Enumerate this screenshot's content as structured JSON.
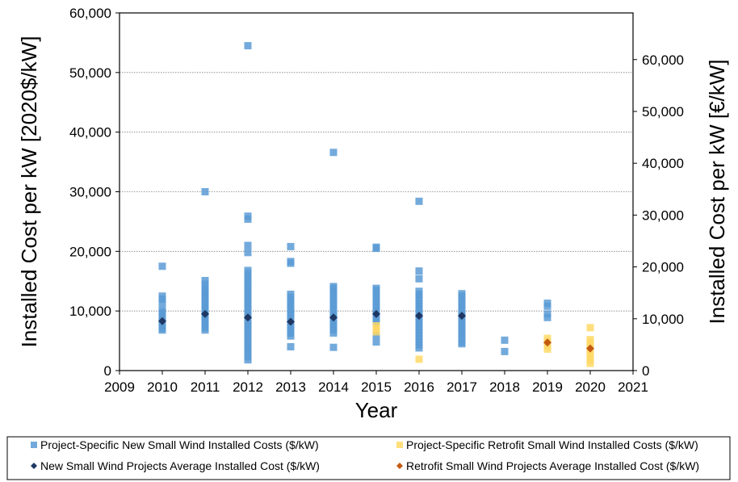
{
  "chart_data": {
    "type": "scatter",
    "xlabel": "Year",
    "ylabel_left": "Installed Cost per kW [2020$/kW]",
    "ylabel_right": "Installed Cost per kW [€/kW]",
    "x_ticks": [
      "2009",
      "2010",
      "2011",
      "2012",
      "2013",
      "2014",
      "2015",
      "2016",
      "2017",
      "2018",
      "2019",
      "2020",
      "2021"
    ],
    "xlim": [
      2009,
      2021
    ],
    "ylim_left": [
      0,
      60000
    ],
    "y_ticks_left": [
      "0",
      "10,000",
      "20,000",
      "30,000",
      "40,000",
      "50,000",
      "60,000"
    ],
    "ylim_right": [
      0,
      69000
    ],
    "y_ticks_right": [
      "0",
      "10,000",
      "20,000",
      "30,000",
      "40,000",
      "50,000",
      "60,000"
    ],
    "gridlines": true,
    "legend_position": "bottom",
    "series": [
      {
        "name": "Project-Specific New Small Wind Installed Costs ($/kW)",
        "marker": "square",
        "color": "#5b9bd5",
        "points": [
          {
            "x": 2010,
            "y": [
              6800,
              7100,
              7400,
              7700,
              8000,
              8300,
              8600,
              8900,
              9200,
              9500,
              9800,
              10100,
              11300,
              12000,
              12500,
              17500
            ]
          },
          {
            "x": 2011,
            "y": [
              6800,
              7200,
              7600,
              8000,
              8400,
              8800,
              9200,
              9600,
              10000,
              10400,
              10800,
              11200,
              11600,
              12000,
              12400,
              12800,
              13200,
              13600,
              14000,
              14500,
              15100,
              30000
            ]
          },
          {
            "x": 2012,
            "y": [
              1800,
              2300,
              2800,
              3300,
              3800,
              4300,
              4800,
              5300,
              5800,
              6300,
              6800,
              7300,
              7800,
              8300,
              8800,
              9300,
              9800,
              10300,
              10800,
              11300,
              11800,
              12300,
              12800,
              13300,
              13800,
              14300,
              14800,
              15300,
              15800,
              16300,
              16800,
              19800,
              21000,
              25400,
              25900,
              54500
            ]
          },
          {
            "x": 2013,
            "y": [
              4000,
              5800,
              6300,
              6800,
              7300,
              7800,
              8300,
              8800,
              9300,
              9800,
              10300,
              10800,
              11300,
              11800,
              12300,
              12800,
              18000,
              18300,
              20800
            ]
          },
          {
            "x": 2014,
            "y": [
              3900,
              6300,
              6800,
              7300,
              7800,
              8300,
              8800,
              9300,
              9800,
              10300,
              10800,
              11300,
              11800,
              12300,
              12800,
              13300,
              13800,
              14100,
              36600
            ]
          },
          {
            "x": 2015,
            "y": [
              4800,
              6000,
              6500,
              7000,
              7500,
              8000,
              8500,
              9000,
              9500,
              10000,
              10500,
              11000,
              11500,
              12000,
              12500,
              13000,
              13500,
              13800,
              20500,
              20700
            ]
          },
          {
            "x": 2016,
            "y": [
              3800,
              4300,
              4800,
              5300,
              5800,
              6300,
              6800,
              7300,
              7800,
              8300,
              8800,
              9300,
              9800,
              10300,
              10800,
              11300,
              11800,
              12300,
              12800,
              13300,
              15400,
              16700,
              28400
            ]
          },
          {
            "x": 2017,
            "y": [
              4500,
              4800,
              5500,
              6000,
              6500,
              7000,
              7500,
              8000,
              8500,
              9000,
              9500,
              10000,
              10500,
              11000,
              11500,
              12000,
              12500,
              12900
            ]
          },
          {
            "x": 2018,
            "y": [
              3200,
              5100
            ]
          },
          {
            "x": 2019,
            "y": [
              8900,
              9500,
              10800,
              11300
            ]
          }
        ]
      },
      {
        "name": "Project-Specific Retrofit Small Wind Installed Costs ($/kW)",
        "marker": "square",
        "color": "#ffd966",
        "points": [
          {
            "x": 2015,
            "y": [
              6500,
              7000,
              7500
            ]
          },
          {
            "x": 2016,
            "y": [
              1900
            ]
          },
          {
            "x": 2019,
            "y": [
              3600,
              4200,
              4800,
              5400
            ]
          },
          {
            "x": 2020,
            "y": [
              1200,
              1700,
              2200,
              2700,
              3200,
              3700,
              4200,
              4700,
              5200,
              7200
            ]
          }
        ]
      },
      {
        "name": "New Small Wind Projects Average Installed Cost ($/kW)",
        "marker": "diamond",
        "color": "#1f3864",
        "points": [
          {
            "x": 2010,
            "y": 8300
          },
          {
            "x": 2011,
            "y": 9500
          },
          {
            "x": 2012,
            "y": 8900
          },
          {
            "x": 2013,
            "y": 8200
          },
          {
            "x": 2014,
            "y": 8900
          },
          {
            "x": 2015,
            "y": 9500
          },
          {
            "x": 2016,
            "y": 9200
          },
          {
            "x": 2017,
            "y": 9200
          }
        ]
      },
      {
        "name": "Retrofit Small Wind Projects Average Installed Cost ($/kW)",
        "marker": "diamond",
        "color": "#c55a11",
        "points": [
          {
            "x": 2019,
            "y": 4700
          },
          {
            "x": 2020,
            "y": 3700
          }
        ]
      }
    ]
  }
}
